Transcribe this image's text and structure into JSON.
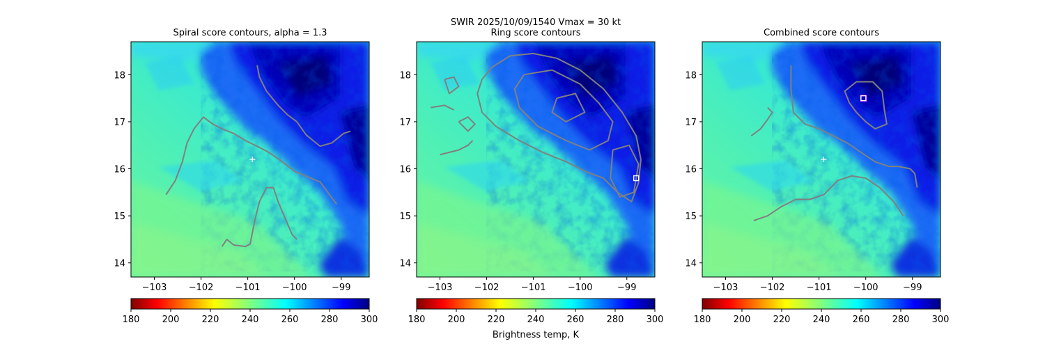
{
  "suptitle": {
    "line1": "SWIR  2025/10/09/1540    Vmax = 30 kt"
  },
  "colorbar": {
    "ticks": [
      "180",
      "200",
      "220",
      "240",
      "260",
      "280",
      "300"
    ],
    "range": [
      180,
      300
    ],
    "cmap": "jet_r",
    "label": "Brightness temp, K"
  },
  "contour_color": "#808080",
  "background_colors": {
    "warm_clear": "#43f3c0",
    "cyan": "#1fe0f0",
    "deep_blue": "#0a18e8",
    "navy": "#00006c"
  },
  "chart_data": [
    {
      "type": "heatmap",
      "title": "Spiral score contours, alpha =  1.3",
      "xlim": [
        -103.5,
        -98.4
      ],
      "ylim": [
        13.7,
        18.7
      ],
      "xticks": [
        "−103",
        "−102",
        "−101",
        "−100",
        "−99"
      ],
      "xtick_values": [
        -103,
        -102,
        -101,
        -100,
        -99
      ],
      "yticks": [
        "14",
        "15",
        "16",
        "17",
        "18"
      ],
      "ytick_values": [
        14,
        15,
        16,
        17,
        18
      ],
      "markers": [
        {
          "symbol": "plus",
          "color": "#ffffff",
          "lon": -100.9,
          "lat": 16.2
        }
      ],
      "contours": [
        [
          [
            -100.8,
            18.2
          ],
          [
            -100.75,
            17.95
          ],
          [
            -100.6,
            17.65
          ],
          [
            -100.35,
            17.35
          ],
          [
            -100.15,
            17.15
          ],
          [
            -99.95,
            17.0
          ],
          [
            -99.75,
            16.72
          ],
          [
            -99.6,
            16.6
          ],
          [
            -99.45,
            16.48
          ],
          [
            -99.2,
            16.55
          ],
          [
            -98.95,
            16.75
          ],
          [
            -98.8,
            16.8
          ]
        ],
        [
          [
            -102.75,
            15.45
          ],
          [
            -102.55,
            15.75
          ],
          [
            -102.4,
            16.15
          ],
          [
            -102.3,
            16.55
          ],
          [
            -102.15,
            16.85
          ],
          [
            -101.95,
            17.1
          ],
          [
            -101.75,
            16.95
          ],
          [
            -101.55,
            16.85
          ],
          [
            -101.3,
            16.75
          ],
          [
            -101.05,
            16.6
          ],
          [
            -100.8,
            16.48
          ],
          [
            -100.55,
            16.35
          ],
          [
            -100.3,
            16.18
          ],
          [
            -100.0,
            15.95
          ],
          [
            -99.7,
            15.82
          ],
          [
            -99.45,
            15.72
          ],
          [
            -99.25,
            15.45
          ],
          [
            -99.1,
            15.25
          ]
        ],
        [
          [
            -101.55,
            14.35
          ],
          [
            -101.45,
            14.5
          ],
          [
            -101.3,
            14.38
          ],
          [
            -101.05,
            14.35
          ],
          [
            -100.95,
            14.4
          ],
          [
            -100.85,
            14.9
          ],
          [
            -100.75,
            15.3
          ],
          [
            -100.6,
            15.6
          ],
          [
            -100.45,
            15.6
          ],
          [
            -100.35,
            15.3
          ],
          [
            -100.2,
            14.95
          ],
          [
            -100.05,
            14.6
          ],
          [
            -99.95,
            14.5
          ]
        ]
      ]
    },
    {
      "type": "heatmap",
      "title": "Ring score contours",
      "xlim": [
        -103.5,
        -98.4
      ],
      "ylim": [
        13.7,
        18.7
      ],
      "xticks": [
        "−103",
        "−102",
        "−101",
        "−100",
        "−99"
      ],
      "xtick_values": [
        -103,
        -102,
        -101,
        -100,
        -99
      ],
      "yticks": [
        "14",
        "15",
        "16",
        "17",
        "18"
      ],
      "ytick_values": [
        14,
        15,
        16,
        17,
        18
      ],
      "markers": [
        {
          "symbol": "square",
          "color": "#ffffff",
          "lon": -98.8,
          "lat": 15.8
        }
      ],
      "contours": [
        [
          [
            -101.9,
            18.15
          ],
          [
            -101.5,
            18.4
          ],
          [
            -101.0,
            18.45
          ],
          [
            -100.5,
            18.35
          ],
          [
            -100.0,
            18.1
          ],
          [
            -99.5,
            17.7
          ],
          [
            -99.1,
            17.2
          ],
          [
            -98.8,
            16.7
          ],
          [
            -98.7,
            16.2
          ],
          [
            -98.75,
            15.7
          ],
          [
            -98.9,
            15.3
          ],
          [
            -99.2,
            15.5
          ],
          [
            -99.5,
            15.8
          ],
          [
            -99.9,
            15.95
          ],
          [
            -100.3,
            16.15
          ],
          [
            -100.8,
            16.35
          ],
          [
            -101.3,
            16.6
          ],
          [
            -101.8,
            16.9
          ],
          [
            -102.1,
            17.2
          ],
          [
            -102.2,
            17.6
          ],
          [
            -102.1,
            17.9
          ],
          [
            -101.9,
            18.15
          ]
        ],
        [
          [
            -101.2,
            18.0
          ],
          [
            -100.6,
            18.1
          ],
          [
            -100.0,
            17.8
          ],
          [
            -99.6,
            17.4
          ],
          [
            -99.3,
            17.0
          ],
          [
            -99.4,
            16.6
          ],
          [
            -99.8,
            16.4
          ],
          [
            -100.3,
            16.6
          ],
          [
            -100.9,
            16.9
          ],
          [
            -101.3,
            17.3
          ],
          [
            -101.4,
            17.7
          ],
          [
            -101.2,
            18.0
          ]
        ],
        [
          [
            -99.3,
            16.4
          ],
          [
            -98.95,
            16.5
          ],
          [
            -98.75,
            16.1
          ],
          [
            -98.85,
            15.5
          ],
          [
            -99.15,
            15.4
          ],
          [
            -99.35,
            15.8
          ],
          [
            -99.3,
            16.4
          ]
        ],
        [
          [
            -100.5,
            17.5
          ],
          [
            -100.1,
            17.6
          ],
          [
            -99.9,
            17.2
          ],
          [
            -100.3,
            17.0
          ],
          [
            -100.6,
            17.2
          ],
          [
            -100.5,
            17.5
          ]
        ],
        [
          [
            -103.0,
            16.3
          ],
          [
            -102.8,
            16.35
          ],
          [
            -102.6,
            16.4
          ],
          [
            -102.4,
            16.5
          ],
          [
            -102.3,
            16.6
          ]
        ],
        [
          [
            -102.6,
            17.0
          ],
          [
            -102.4,
            17.1
          ],
          [
            -102.25,
            16.95
          ],
          [
            -102.4,
            16.8
          ],
          [
            -102.6,
            17.0
          ]
        ],
        [
          [
            -103.2,
            17.3
          ],
          [
            -102.9,
            17.35
          ],
          [
            -102.7,
            17.25
          ]
        ],
        [
          [
            -102.9,
            17.9
          ],
          [
            -102.7,
            17.95
          ],
          [
            -102.6,
            17.75
          ],
          [
            -102.8,
            17.6
          ],
          [
            -102.9,
            17.9
          ]
        ]
      ]
    },
    {
      "type": "heatmap",
      "title": "Combined score contours",
      "xlim": [
        -103.5,
        -98.4
      ],
      "ylim": [
        13.7,
        18.7
      ],
      "xticks": [
        "−103",
        "−102",
        "−101",
        "−100",
        "−99"
      ],
      "xtick_values": [
        -103,
        -102,
        -101,
        -100,
        -99
      ],
      "yticks": [
        "14",
        "15",
        "16",
        "17",
        "18"
      ],
      "ytick_values": [
        14,
        15,
        16,
        17,
        18
      ],
      "markers": [
        {
          "symbol": "square",
          "color": "#ff00ff",
          "lon": -100.05,
          "lat": 17.5
        },
        {
          "symbol": "square",
          "color": "#ffffff",
          "lon": -100.05,
          "lat": 17.5
        },
        {
          "symbol": "plus",
          "color": "#ffffff",
          "lon": -100.9,
          "lat": 16.2
        }
      ],
      "contours": [
        [
          [
            -101.6,
            18.2
          ],
          [
            -101.6,
            17.7
          ],
          [
            -101.55,
            17.2
          ],
          [
            -101.3,
            16.95
          ],
          [
            -101.0,
            16.85
          ],
          [
            -100.7,
            16.7
          ],
          [
            -100.4,
            16.55
          ],
          [
            -100.1,
            16.35
          ],
          [
            -99.8,
            16.15
          ],
          [
            -99.5,
            16.05
          ],
          [
            -99.3,
            16.05
          ],
          [
            -99.05,
            16.0
          ],
          [
            -98.95,
            15.9
          ],
          [
            -98.9,
            15.6
          ]
        ],
        [
          [
            -100.35,
            17.4
          ],
          [
            -100.45,
            17.65
          ],
          [
            -100.2,
            17.85
          ],
          [
            -99.85,
            17.85
          ],
          [
            -99.65,
            17.65
          ],
          [
            -99.6,
            17.25
          ],
          [
            -99.55,
            16.95
          ],
          [
            -99.8,
            16.85
          ],
          [
            -100.0,
            17.0
          ],
          [
            -100.2,
            17.2
          ],
          [
            -100.35,
            17.4
          ]
        ],
        [
          [
            -102.45,
            16.7
          ],
          [
            -102.25,
            16.85
          ],
          [
            -102.1,
            17.05
          ],
          [
            -102.0,
            17.2
          ],
          [
            -102.1,
            17.3
          ]
        ],
        [
          [
            -102.4,
            14.9
          ],
          [
            -102.1,
            15.0
          ],
          [
            -101.8,
            15.2
          ],
          [
            -101.5,
            15.35
          ],
          [
            -101.2,
            15.35
          ],
          [
            -100.9,
            15.45
          ],
          [
            -100.6,
            15.75
          ],
          [
            -100.3,
            15.85
          ],
          [
            -100.0,
            15.8
          ],
          [
            -99.7,
            15.6
          ],
          [
            -99.4,
            15.3
          ],
          [
            -99.2,
            15.0
          ]
        ]
      ]
    }
  ]
}
